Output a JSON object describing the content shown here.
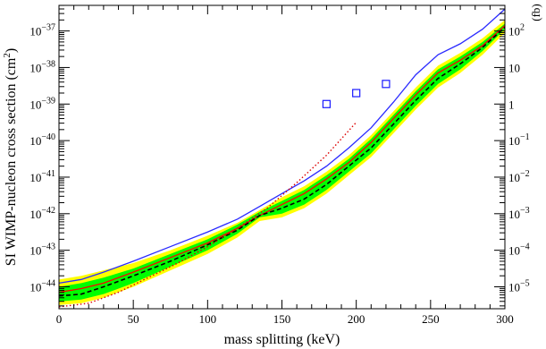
{
  "chart_data": {
    "type": "line",
    "title": "",
    "xlabel": "mass splitting (keV)",
    "ylabel": "SI WIMP-nucleon cross section (cm$^{2}$)",
    "y2label": "(fb)",
    "xlim": [
      0,
      300
    ],
    "ylim_log10": [
      -44.6,
      -36.3
    ],
    "y_scale": "log",
    "grid": false,
    "legend": "none",
    "x_ticks": [
      "0",
      "50",
      "100",
      "150",
      "200",
      "250",
      "300"
    ],
    "y_ticks_left": [
      {
        "base": "10",
        "exp": "−44",
        "log10": -44
      },
      {
        "base": "10",
        "exp": "−43",
        "log10": -43
      },
      {
        "base": "10",
        "exp": "−42",
        "log10": -42
      },
      {
        "base": "10",
        "exp": "−41",
        "log10": -41
      },
      {
        "base": "10",
        "exp": "−40",
        "log10": -40
      },
      {
        "base": "10",
        "exp": "−39",
        "log10": -39
      },
      {
        "base": "10",
        "exp": "−38",
        "log10": -38
      },
      {
        "base": "10",
        "exp": "−37",
        "log10": -37
      }
    ],
    "y_ticks_right": [
      {
        "base": "10",
        "exp": "−5",
        "log10": -44
      },
      {
        "base": "10",
        "exp": "−4",
        "log10": -43
      },
      {
        "base": "10",
        "exp": "−3",
        "log10": -42
      },
      {
        "base": "10",
        "exp": "−2",
        "log10": -41
      },
      {
        "base": "10",
        "exp": "−1",
        "log10": -40
      },
      {
        "base": "1",
        "exp": "",
        "log10": -39
      },
      {
        "base": "10",
        "exp": "",
        "log10": -38
      },
      {
        "base": "10",
        "exp": "2",
        "log10": -37
      }
    ],
    "band_2sigma": {
      "color": "#ffff00",
      "x": [
        0,
        15,
        30,
        50,
        75,
        100,
        120,
        135,
        150,
        165,
        180,
        195,
        210,
        225,
        240,
        255,
        270,
        285,
        300
      ],
      "low": [
        -44.5,
        -44.45,
        -44.3,
        -44.0,
        -43.55,
        -43.1,
        -42.65,
        -42.2,
        -42.1,
        -41.85,
        -41.45,
        -40.95,
        -40.45,
        -39.8,
        -39.15,
        -38.55,
        -38.15,
        -37.65,
        -37.05
      ],
      "high": [
        -43.8,
        -43.7,
        -43.55,
        -43.35,
        -43.0,
        -42.6,
        -42.25,
        -41.9,
        -41.55,
        -41.25,
        -40.85,
        -40.4,
        -39.85,
        -39.2,
        -38.55,
        -37.95,
        -37.6,
        -37.2,
        -36.7
      ]
    },
    "band_1sigma": {
      "color": "#00ff00",
      "x": [
        0,
        15,
        30,
        50,
        75,
        100,
        120,
        135,
        150,
        165,
        180,
        195,
        210,
        225,
        240,
        255,
        270,
        285,
        300
      ],
      "low": [
        -44.4,
        -44.35,
        -44.2,
        -43.9,
        -43.45,
        -43.0,
        -42.55,
        -42.1,
        -42.0,
        -41.75,
        -41.35,
        -40.85,
        -40.35,
        -39.7,
        -39.05,
        -38.45,
        -38.05,
        -37.55,
        -36.95
      ],
      "high": [
        -44.0,
        -43.9,
        -43.75,
        -43.5,
        -43.1,
        -42.7,
        -42.3,
        -41.95,
        -41.65,
        -41.35,
        -40.95,
        -40.5,
        -39.95,
        -39.3,
        -38.65,
        -38.05,
        -37.7,
        -37.3,
        -36.8
      ]
    },
    "series": [
      {
        "style": "blue-solid",
        "color": "#2a2aff",
        "x": [
          0,
          15,
          30,
          50,
          75,
          100,
          120,
          135,
          150,
          165,
          180,
          195,
          210,
          225,
          240,
          255,
          270,
          285,
          300
        ],
        "y": [
          -43.9,
          -43.8,
          -43.6,
          -43.3,
          -42.9,
          -42.5,
          -42.15,
          -41.8,
          -41.45,
          -41.1,
          -40.7,
          -40.2,
          -39.65,
          -38.95,
          -38.2,
          -37.65,
          -37.35,
          -36.95,
          -36.4
        ]
      },
      {
        "style": "red-solid",
        "color": "#ff0000",
        "x": [
          0,
          15,
          30,
          50,
          75,
          100,
          120,
          135,
          150,
          165,
          180,
          195,
          210,
          225,
          240,
          255,
          270,
          285,
          300
        ],
        "y": [
          -44.15,
          -44.05,
          -43.9,
          -43.6,
          -43.2,
          -42.8,
          -42.4,
          -42.05,
          -41.75,
          -41.45,
          -41.05,
          -40.6,
          -40.05,
          -39.4,
          -38.75,
          -38.15,
          -37.8,
          -37.4,
          -36.85
        ]
      },
      {
        "style": "black-dashed",
        "color": "#000000",
        "x": [
          0,
          15,
          30,
          50,
          75,
          100,
          120,
          135,
          150,
          165,
          180,
          195,
          210,
          225,
          240,
          255,
          270,
          285,
          300
        ],
        "y": [
          -44.25,
          -44.2,
          -44.0,
          -43.7,
          -43.3,
          -42.85,
          -42.45,
          -42.05,
          -41.85,
          -41.6,
          -41.2,
          -40.7,
          -40.2,
          -39.55,
          -38.9,
          -38.3,
          -37.9,
          -37.45,
          -36.9
        ]
      },
      {
        "style": "red-dotted",
        "color": "#dd0000",
        "x": [
          0,
          20,
          40,
          60,
          80,
          100,
          120,
          140,
          160,
          180,
          200
        ],
        "y": [
          -44.55,
          -44.45,
          -44.15,
          -43.75,
          -43.35,
          -42.9,
          -42.4,
          -41.85,
          -41.15,
          -40.4,
          -39.5
        ]
      }
    ],
    "markers": {
      "symbol": "open-square",
      "color": "#1a1aff",
      "x": [
        180,
        200,
        220
      ],
      "y": [
        -39.0,
        -38.7,
        -38.45
      ]
    }
  }
}
